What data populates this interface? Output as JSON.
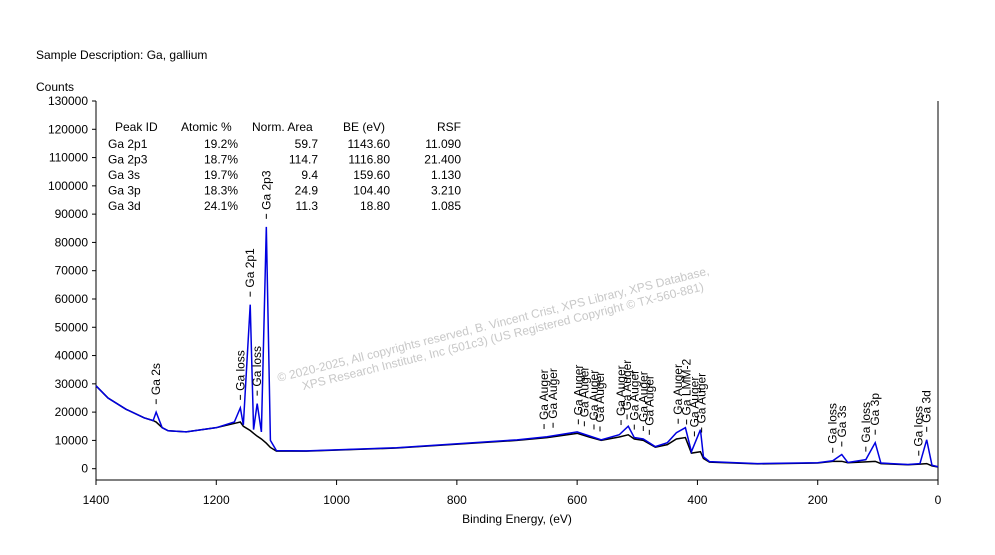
{
  "chart_data": {
    "type": "line",
    "title": "Sample Description:  Ga, gallium",
    "ylabel": "Counts",
    "xlabel": "Binding Energy, (eV)",
    "xlim": [
      1400,
      0
    ],
    "ylim": [
      -4000,
      130000
    ],
    "xticks": [
      1400,
      1200,
      1000,
      800,
      600,
      400,
      200,
      0
    ],
    "yticks": [
      0,
      10000,
      20000,
      30000,
      40000,
      50000,
      60000,
      70000,
      80000,
      90000,
      100000,
      110000,
      120000,
      130000
    ],
    "x": [
      1400,
      1380,
      1350,
      1320,
      1305,
      1300,
      1290,
      1280,
      1250,
      1200,
      1170,
      1160,
      1155,
      1143.6,
      1138,
      1132,
      1125,
      1116.8,
      1110,
      1100,
      1050,
      900,
      700,
      650,
      600,
      580,
      560,
      530,
      515,
      505,
      490,
      470,
      450,
      435,
      420,
      410,
      395,
      390,
      380,
      300,
      200,
      175,
      160,
      150,
      120,
      104.4,
      95,
      50,
      30,
      18.8,
      10,
      0
    ],
    "series": [
      {
        "color": "#0000e0",
        "values": [
          29300,
          25000,
          21000,
          18000,
          17000,
          20000,
          14500,
          13400,
          13000,
          14500,
          16500,
          21500,
          15500,
          58000,
          13800,
          23000,
          13000,
          85500,
          10000,
          6400,
          6300,
          7400,
          10200,
          11300,
          13000,
          11600,
          10200,
          12000,
          15000,
          11000,
          10500,
          7800,
          9200,
          12700,
          14500,
          6000,
          13800,
          4200,
          2500,
          1800,
          2100,
          2800,
          5000,
          2200,
          3200,
          9200,
          2000,
          1500,
          1800,
          10200,
          1200,
          700
        ]
      },
      {
        "color": "#000000",
        "values": [
          29300,
          25000,
          21000,
          18000,
          17000,
          16500,
          14500,
          13400,
          13000,
          14500,
          16000,
          16500,
          15000,
          13500,
          12500,
          11500,
          10500,
          9000,
          7500,
          6200,
          6200,
          7300,
          10000,
          11000,
          12500,
          11200,
          10000,
          11200,
          12000,
          10500,
          10000,
          7600,
          8500,
          10500,
          11000,
          5500,
          6000,
          3600,
          2300,
          1700,
          2000,
          2600,
          2600,
          2100,
          2400,
          2600,
          1800,
          1400,
          1600,
          1800,
          1000,
          600
        ]
      }
    ],
    "annotations": [
      {
        "x": 1300,
        "text": "Ga 2s"
      },
      {
        "x": 1160,
        "text": "Ga loss"
      },
      {
        "x": 1143.6,
        "text": "Ga 2p1"
      },
      {
        "x": 1132,
        "text": "Ga loss"
      },
      {
        "x": 1116.8,
        "text": "Ga 2p3"
      },
      {
        "x": 655,
        "text": "Ga Auger"
      },
      {
        "x": 640,
        "text": "Ga Auger"
      },
      {
        "x": 598,
        "text": "Ga Auger"
      },
      {
        "x": 588,
        "text": "Ga Auger"
      },
      {
        "x": 572,
        "text": "Ga Auger"
      },
      {
        "x": 562,
        "text": "Ga Auger"
      },
      {
        "x": 527,
        "text": "Ga Auger"
      },
      {
        "x": 517,
        "text": "Ga Auger"
      },
      {
        "x": 505,
        "text": "Ga Auger"
      },
      {
        "x": 490,
        "text": "Ga Auger"
      },
      {
        "x": 480,
        "text": "Ga Auger"
      },
      {
        "x": 432,
        "text": "Ga Auger"
      },
      {
        "x": 418,
        "text": "Ga LMM-2"
      },
      {
        "x": 405,
        "text": "Ga Auger"
      },
      {
        "x": 393,
        "text": "Ga Auger"
      },
      {
        "x": 175,
        "text": "Ga loss"
      },
      {
        "x": 160,
        "text": "Ga 3s"
      },
      {
        "x": 120,
        "text": "Ga loss"
      },
      {
        "x": 104.4,
        "text": "Ga 3p"
      },
      {
        "x": 32,
        "text": "Ga loss"
      },
      {
        "x": 18.8,
        "text": "Ga 3d"
      }
    ],
    "watermark": [
      "© 2020-2025,  All copyrights reserved,    B. Vincent Crist,  XPS Library, XPS Database,",
      "XPS Research Institute, Inc (501c3)   (US Registered Copyright © TX-560-881)"
    ],
    "table": {
      "header": [
        "Peak ID",
        "Atomic %",
        "Norm. Area",
        "BE (eV)",
        "RSF"
      ],
      "rows": [
        [
          "Ga 2p1",
          "19.2%",
          "59.7",
          "1143.60",
          "11.090"
        ],
        [
          "Ga 2p3",
          "18.7%",
          "114.7",
          "1116.80",
          "21.400"
        ],
        [
          "Ga 3s",
          "19.7%",
          "9.4",
          "159.60",
          "1.130"
        ],
        [
          "Ga 3p",
          "18.3%",
          "24.9",
          "104.40",
          "3.210"
        ],
        [
          "Ga 3d",
          "24.1%",
          "11.3",
          "18.80",
          "1.085"
        ]
      ]
    }
  }
}
